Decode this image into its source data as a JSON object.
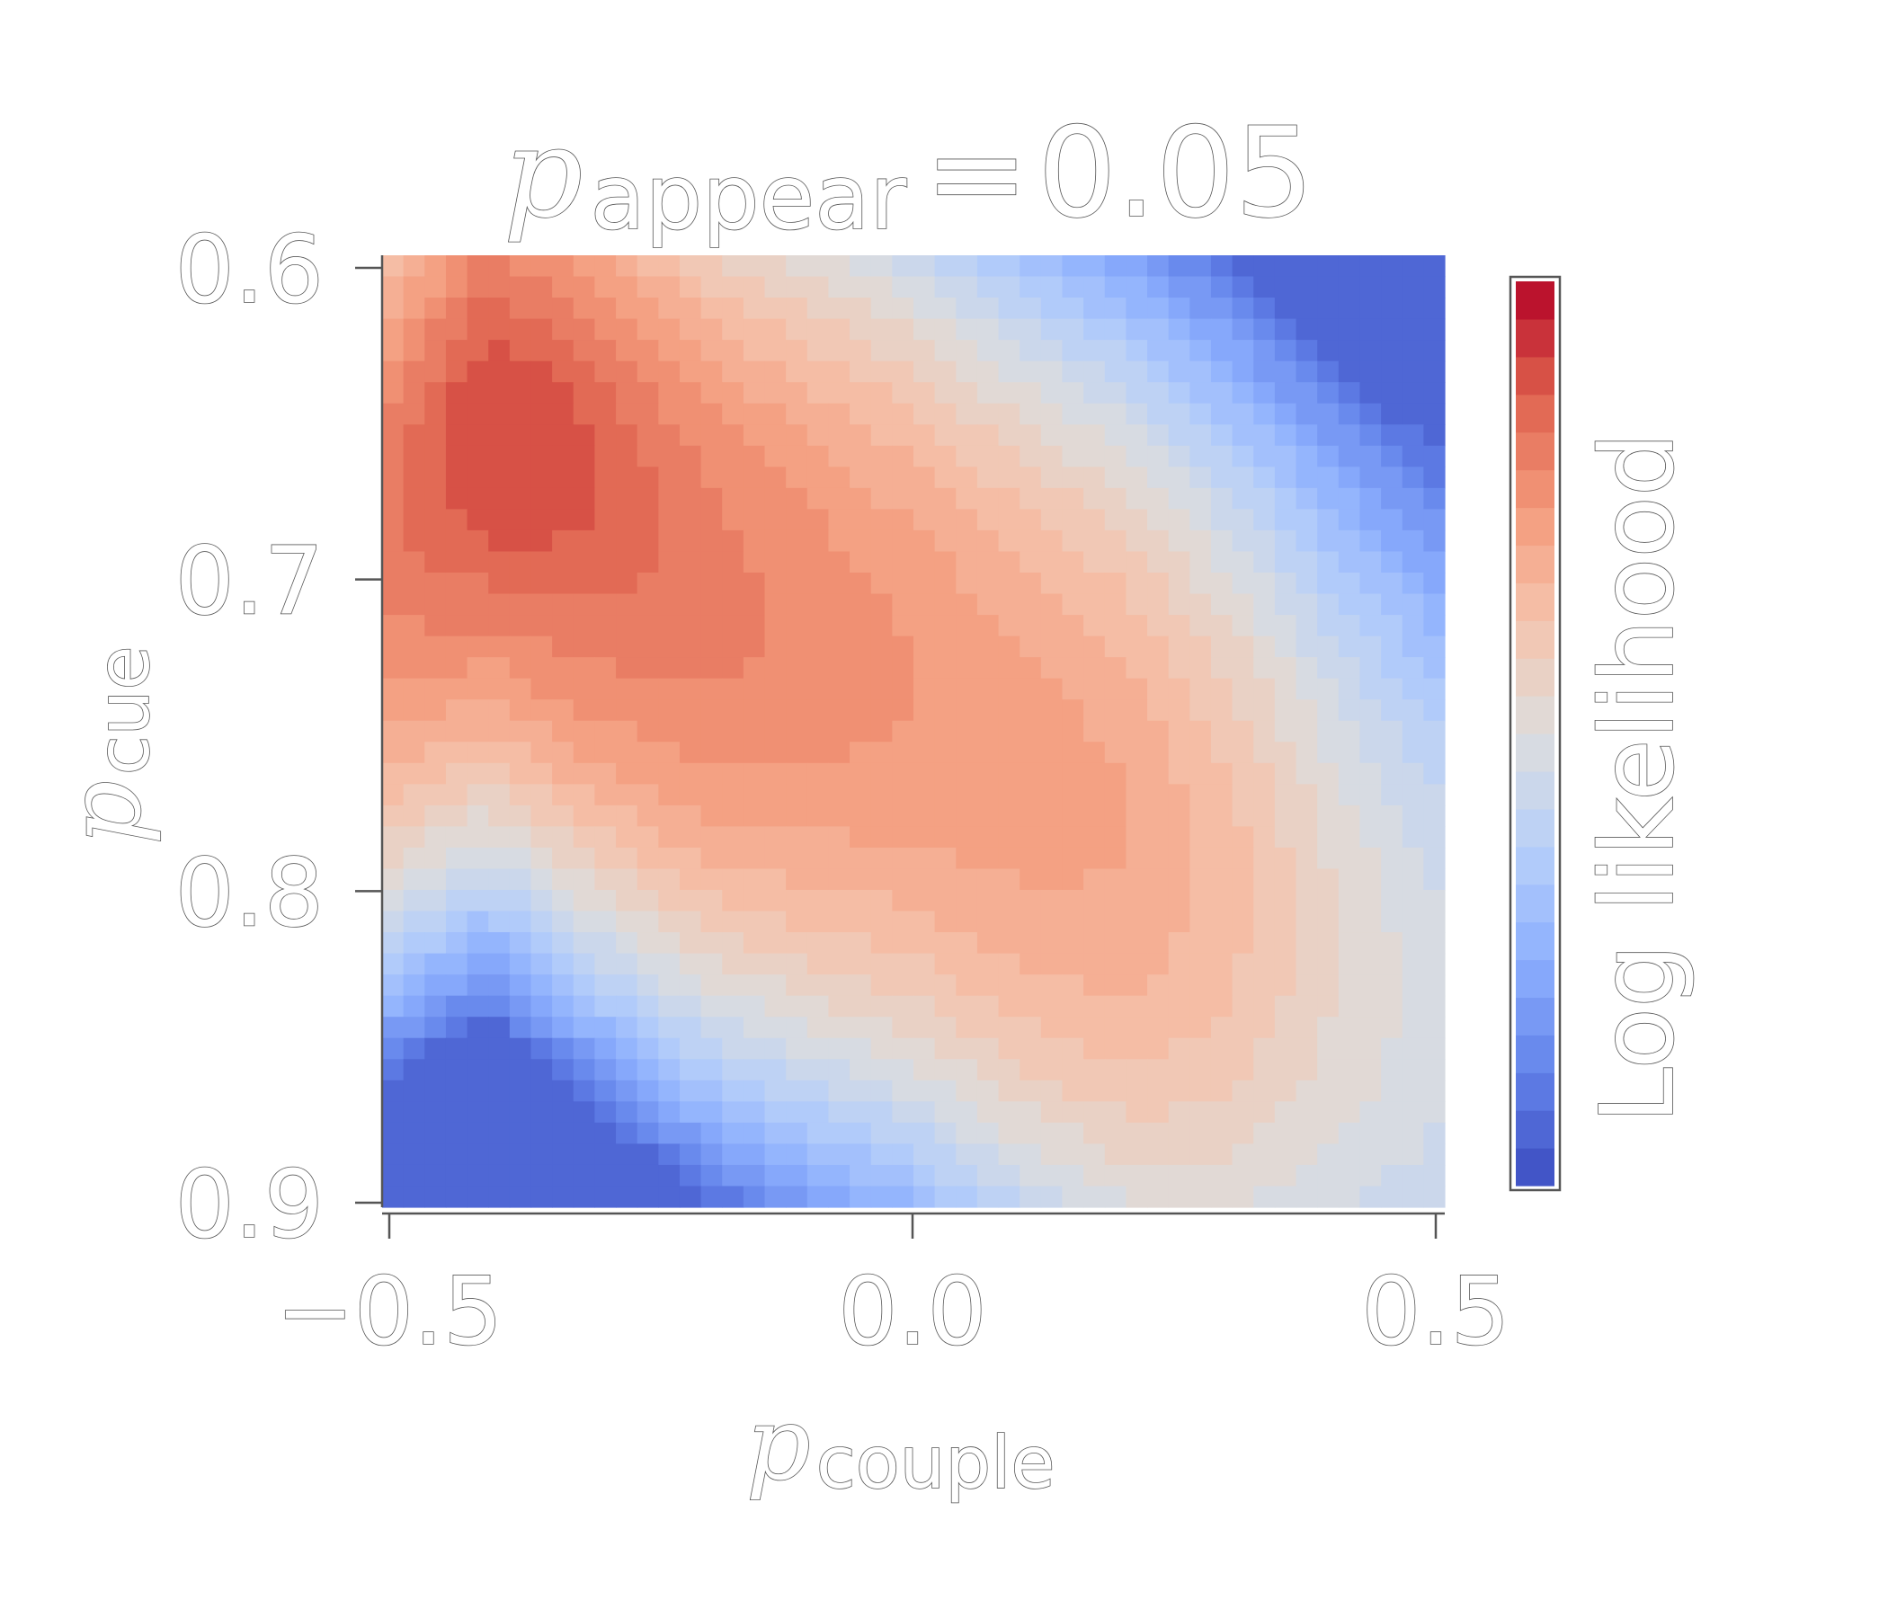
{
  "chart_data": {
    "type": "heatmap",
    "title": {
      "symbol": "p",
      "subscript": "appear",
      "equals": "=",
      "value": "0.05"
    },
    "xlabel": {
      "symbol": "p",
      "subscript": "couple"
    },
    "ylabel": {
      "symbol": "p",
      "subscript": "cue"
    },
    "colorbar_label": "Log likelihood",
    "x_range": [
      -0.5,
      0.5
    ],
    "y_range": [
      0.6,
      0.9
    ],
    "y_inverted": true,
    "x_ticks": [
      -0.5,
      0.0,
      0.5
    ],
    "x_tick_labels": [
      "−0.5",
      "0.0",
      "0.5"
    ],
    "y_ticks": [
      0.6,
      0.7,
      0.8,
      0.9
    ],
    "y_tick_labels": [
      "0.6",
      "0.7",
      "0.8",
      "0.9"
    ],
    "grid_cols": 50,
    "grid_rows": 45,
    "colormap": "coolwarm",
    "colorbar_levels": 24,
    "legend": "right",
    "colors": {
      "low": "#3b4cc0",
      "mid": "#dddddd",
      "high": "#b40426"
    },
    "landscape": {
      "ridge": [
        [
          -0.5,
          0.69
        ],
        [
          -0.4,
          0.655
        ],
        [
          -0.3,
          0.68
        ],
        [
          -0.2,
          0.705
        ],
        [
          -0.1,
          0.72
        ],
        [
          0.0,
          0.735
        ],
        [
          0.1,
          0.76
        ],
        [
          0.2,
          0.78
        ],
        [
          0.3,
          0.8
        ],
        [
          0.4,
          0.82
        ],
        [
          0.5,
          0.84
        ]
      ],
      "ridge_level": [
        0.8,
        0.87,
        0.84,
        0.81,
        0.78,
        0.75,
        0.73,
        0.71,
        0.64,
        0.54,
        0.47
      ],
      "peak_location": [
        -0.37,
        0.66
      ],
      "level_min": 0.06,
      "level_max": 0.88
    }
  }
}
